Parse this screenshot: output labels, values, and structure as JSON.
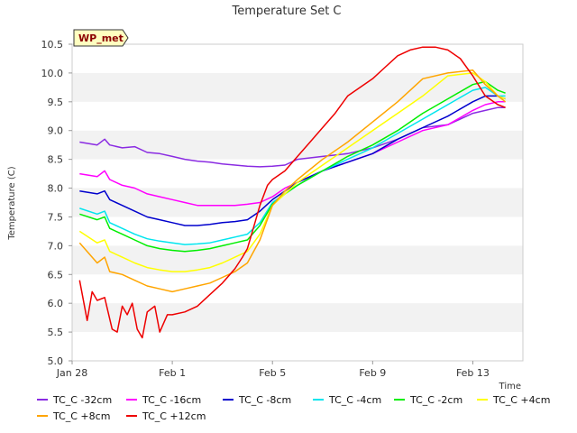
{
  "chart_data": {
    "type": "line",
    "title": "Temperature Set C",
    "xlabel": "Time",
    "ylabel": "Temperature (C)",
    "badge": "WP_met",
    "x_range_days": [
      0,
      18
    ],
    "x_ticks": [
      {
        "day": 0,
        "label": "Jan 28"
      },
      {
        "day": 4,
        "label": "Feb 1"
      },
      {
        "day": 8,
        "label": "Feb 5"
      },
      {
        "day": 12,
        "label": "Feb 9"
      },
      {
        "day": 16,
        "label": "Feb 13"
      }
    ],
    "ylim": [
      5.0,
      10.5
    ],
    "y_ticks": [
      5.0,
      5.5,
      6.0,
      6.5,
      7.0,
      7.5,
      8.0,
      8.5,
      9.0,
      9.5,
      10.0,
      10.5
    ],
    "grid": "horizontal bands",
    "legend_position": "bottom",
    "series": [
      {
        "name": "TC_C -32cm",
        "color": "#8a2be2",
        "x": [
          0.3,
          1.0,
          1.3,
          1.5,
          2.0,
          2.5,
          3.0,
          3.5,
          4.0,
          4.5,
          5.0,
          5.5,
          6.0,
          6.5,
          7.0,
          7.5,
          8.0,
          8.5,
          9.0,
          10.0,
          11.0,
          12.0,
          13.0,
          14.0,
          15.0,
          16.0,
          16.5,
          17.0,
          17.3
        ],
        "y": [
          8.8,
          8.75,
          8.85,
          8.75,
          8.7,
          8.72,
          8.62,
          8.6,
          8.55,
          8.5,
          8.47,
          8.45,
          8.42,
          8.4,
          8.38,
          8.37,
          8.38,
          8.4,
          8.5,
          8.55,
          8.6,
          8.7,
          8.85,
          9.05,
          9.1,
          9.3,
          9.35,
          9.4,
          9.4
        ]
      },
      {
        "name": "TC_C -16cm",
        "color": "#ff00ff",
        "x": [
          0.3,
          1.0,
          1.3,
          1.5,
          2.0,
          2.5,
          3.0,
          3.5,
          4.0,
          4.5,
          5.0,
          5.5,
          6.0,
          6.5,
          7.0,
          7.5,
          8.0,
          8.5,
          9.0,
          10.0,
          11.0,
          12.0,
          13.0,
          14.0,
          15.0,
          16.0,
          16.5,
          17.0,
          17.3
        ],
        "y": [
          8.25,
          8.2,
          8.3,
          8.15,
          8.05,
          8.0,
          7.9,
          7.85,
          7.8,
          7.75,
          7.7,
          7.7,
          7.7,
          7.7,
          7.72,
          7.75,
          7.85,
          8.0,
          8.1,
          8.3,
          8.45,
          8.6,
          8.8,
          9.0,
          9.1,
          9.35,
          9.45,
          9.5,
          9.5
        ]
      },
      {
        "name": "TC_C -8cm",
        "color": "#0000cd",
        "x": [
          0.3,
          1.0,
          1.3,
          1.5,
          2.0,
          2.5,
          3.0,
          3.5,
          4.0,
          4.5,
          5.0,
          5.5,
          6.0,
          6.5,
          7.0,
          7.5,
          8.0,
          8.5,
          9.0,
          10.0,
          11.0,
          12.0,
          13.0,
          14.0,
          15.0,
          16.0,
          16.5,
          17.0,
          17.3
        ],
        "y": [
          7.95,
          7.9,
          7.95,
          7.8,
          7.7,
          7.6,
          7.5,
          7.45,
          7.4,
          7.35,
          7.35,
          7.37,
          7.4,
          7.42,
          7.45,
          7.6,
          7.8,
          7.95,
          8.1,
          8.3,
          8.45,
          8.6,
          8.85,
          9.05,
          9.25,
          9.5,
          9.6,
          9.6,
          9.55
        ]
      },
      {
        "name": "TC_C -4cm",
        "color": "#00e5ee",
        "x": [
          0.3,
          1.0,
          1.3,
          1.5,
          2.0,
          2.5,
          3.0,
          3.5,
          4.0,
          4.5,
          5.0,
          5.5,
          6.0,
          6.5,
          7.0,
          7.5,
          8.0,
          8.5,
          9.0,
          10.0,
          11.0,
          12.0,
          13.0,
          14.0,
          15.0,
          16.0,
          16.5,
          17.0,
          17.3
        ],
        "y": [
          7.65,
          7.55,
          7.6,
          7.4,
          7.3,
          7.2,
          7.12,
          7.08,
          7.05,
          7.02,
          7.03,
          7.05,
          7.1,
          7.15,
          7.2,
          7.4,
          7.75,
          7.9,
          8.05,
          8.3,
          8.5,
          8.7,
          8.95,
          9.2,
          9.45,
          9.7,
          9.75,
          9.6,
          9.6
        ]
      },
      {
        "name": "TC_C -2cm",
        "color": "#00ee00",
        "x": [
          0.3,
          1.0,
          1.3,
          1.5,
          2.0,
          2.5,
          3.0,
          3.5,
          4.0,
          4.5,
          5.0,
          5.5,
          6.0,
          6.5,
          7.0,
          7.5,
          8.0,
          8.5,
          9.0,
          10.0,
          11.0,
          12.0,
          13.0,
          14.0,
          15.0,
          16.0,
          16.5,
          17.0,
          17.3
        ],
        "y": [
          7.55,
          7.45,
          7.5,
          7.3,
          7.2,
          7.1,
          7.0,
          6.95,
          6.92,
          6.9,
          6.92,
          6.95,
          7.0,
          7.05,
          7.1,
          7.35,
          7.72,
          7.9,
          8.05,
          8.3,
          8.55,
          8.75,
          9.0,
          9.3,
          9.55,
          9.8,
          9.85,
          9.7,
          9.65
        ]
      },
      {
        "name": "TC_C +4cm",
        "color": "#ffff00",
        "x": [
          0.3,
          1.0,
          1.3,
          1.5,
          2.0,
          2.5,
          3.0,
          3.5,
          4.0,
          4.5,
          5.0,
          5.5,
          6.0,
          6.5,
          7.0,
          7.5,
          8.0,
          8.5,
          9.0,
          10.0,
          11.0,
          12.0,
          13.0,
          14.0,
          15.0,
          16.0,
          16.5,
          17.0,
          17.3
        ],
        "y": [
          7.25,
          7.05,
          7.1,
          6.9,
          6.8,
          6.7,
          6.62,
          6.58,
          6.55,
          6.55,
          6.58,
          6.62,
          6.7,
          6.8,
          6.9,
          7.2,
          7.7,
          7.9,
          8.1,
          8.4,
          8.7,
          9.0,
          9.3,
          9.6,
          9.95,
          10.0,
          9.85,
          9.6,
          9.55
        ]
      },
      {
        "name": "TC_C +8cm",
        "color": "#ffa500",
        "x": [
          0.3,
          1.0,
          1.3,
          1.5,
          2.0,
          2.5,
          3.0,
          3.5,
          4.0,
          4.5,
          5.0,
          5.5,
          6.0,
          6.5,
          7.0,
          7.5,
          8.0,
          8.5,
          9.0,
          10.0,
          11.0,
          12.0,
          13.0,
          14.0,
          15.0,
          16.0,
          16.5,
          17.0,
          17.3
        ],
        "y": [
          7.05,
          6.7,
          6.8,
          6.55,
          6.5,
          6.4,
          6.3,
          6.25,
          6.2,
          6.25,
          6.3,
          6.35,
          6.45,
          6.55,
          6.7,
          7.1,
          7.7,
          7.95,
          8.15,
          8.5,
          8.8,
          9.15,
          9.5,
          9.9,
          10.0,
          10.05,
          9.8,
          9.6,
          9.5
        ]
      },
      {
        "name": "TC_C +12cm",
        "color": "#ee0000",
        "x": [
          0.3,
          0.6,
          0.8,
          1.0,
          1.3,
          1.6,
          1.8,
          2.0,
          2.2,
          2.4,
          2.6,
          2.8,
          3.0,
          3.3,
          3.5,
          3.8,
          4.0,
          4.5,
          5.0,
          5.5,
          6.0,
          6.5,
          6.8,
          7.0,
          7.3,
          7.5,
          7.8,
          8.0,
          8.5,
          9.0,
          9.5,
          10.0,
          10.5,
          11.0,
          12.0,
          12.5,
          13.0,
          13.5,
          14.0,
          14.5,
          15.0,
          15.5,
          16.0,
          16.5,
          17.0,
          17.3
        ],
        "y": [
          6.4,
          5.7,
          6.2,
          6.05,
          6.1,
          5.55,
          5.5,
          5.95,
          5.8,
          6.0,
          5.55,
          5.4,
          5.85,
          5.95,
          5.5,
          5.8,
          5.8,
          5.85,
          5.95,
          6.15,
          6.35,
          6.6,
          6.8,
          6.95,
          7.4,
          7.7,
          8.05,
          8.15,
          8.3,
          8.55,
          8.8,
          9.05,
          9.3,
          9.6,
          9.9,
          10.1,
          10.3,
          10.4,
          10.45,
          10.45,
          10.4,
          10.25,
          9.95,
          9.6,
          9.45,
          9.4
        ]
      }
    ]
  }
}
